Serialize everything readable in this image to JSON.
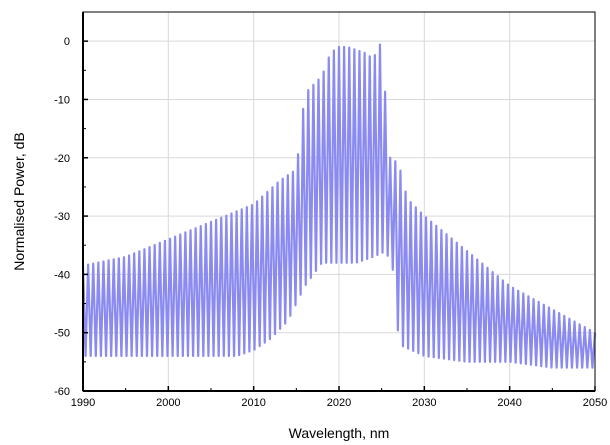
{
  "chart_data": {
    "type": "line",
    "xlabel": "Wavelength, nm",
    "ylabel": "Normalised Power, dB",
    "xlim": [
      1990,
      2050
    ],
    "ylim": [
      -60,
      5
    ],
    "x_ticks": [
      1990,
      2000,
      2010,
      2020,
      2030,
      2040,
      2050
    ],
    "y_ticks": [
      0,
      -10,
      -20,
      -30,
      -40,
      -50,
      -60
    ],
    "grid": true,
    "line_color": "#8a8af0",
    "fringe_period_nm": 0.6,
    "series": [
      {
        "upper_envelope": {
          "x": [
            1990,
            1995,
            2000,
            2005,
            2010,
            2013,
            2015,
            2016,
            2018,
            2019,
            2020,
            2021,
            2022,
            2023,
            2024,
            2025,
            2025.6,
            2026,
            2027,
            2028,
            2030,
            2035,
            2040,
            2045,
            2050
          ],
          "y": [
            -38.5,
            -37,
            -34,
            -31,
            -28,
            -24,
            -22,
            -9,
            -6,
            -2,
            -1,
            -1,
            -1.5,
            -2,
            -3,
            0,
            -13,
            -20,
            -21,
            -27,
            -30,
            -36,
            -42,
            -46,
            -50
          ]
        },
        "lower_envelope": {
          "x": [
            1990,
            2000,
            2008,
            2010,
            2012,
            2014,
            2016,
            2018,
            2020,
            2022,
            2024,
            2025.5,
            2026.5,
            2027,
            2030,
            2035,
            2040,
            2045,
            2050
          ],
          "y": [
            -54,
            -54,
            -54,
            -53,
            -51,
            -48,
            -42,
            -38,
            -38,
            -38,
            -37,
            -36,
            -40,
            -52,
            -54,
            -55,
            -55,
            -56,
            -56
          ]
        }
      }
    ]
  }
}
